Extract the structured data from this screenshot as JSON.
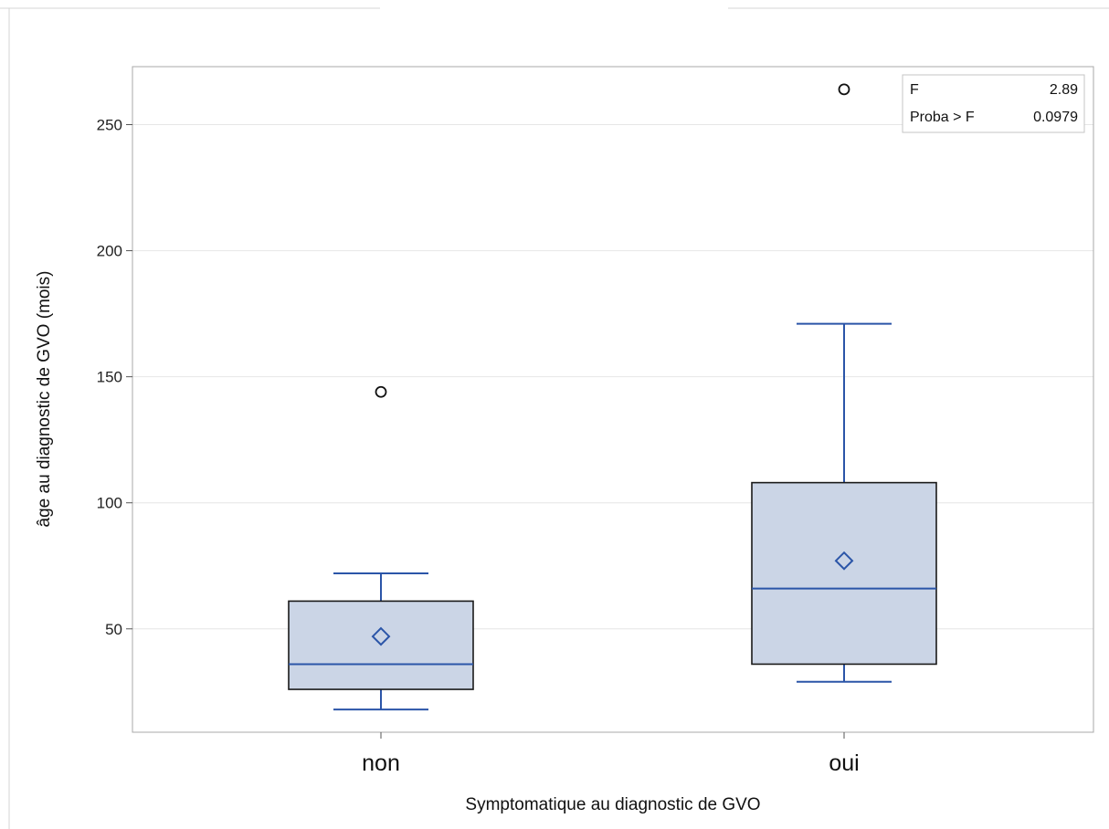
{
  "chart_data": {
    "type": "box",
    "xlabel": "Symptomatique au diagnostic de GVO",
    "ylabel": "âge au diagnostic de GVO (mois)",
    "ylim": [
      9,
      273
    ],
    "yticks": [
      50,
      100,
      150,
      200,
      250
    ],
    "grid": true,
    "categories": [
      "non",
      "oui"
    ],
    "boxes": [
      {
        "category": "non",
        "whisker_low": 18,
        "q1": 26,
        "median": 36,
        "q3": 61,
        "whisker_high": 72,
        "mean": 47,
        "outliers": [
          144
        ]
      },
      {
        "category": "oui",
        "whisker_low": 29,
        "q1": 36,
        "median": 66,
        "q3": 108,
        "whisker_high": 171,
        "mean": 77,
        "outliers": [
          264
        ]
      }
    ],
    "stats": [
      {
        "label": "F",
        "value": "2.89"
      },
      {
        "label": "Proba > F",
        "value": "0.0979"
      }
    ],
    "stats_placement": "top-right"
  },
  "colors": {
    "box_fill": "#cbd5e6",
    "box_border": "#1a1a1a",
    "whisker": "#2b55a8",
    "median": "#2b55a8",
    "mean_marker": "#2b55a8",
    "outlier": "#111111",
    "grid": "#e6e6e6",
    "frame": "#a8a8a8"
  }
}
